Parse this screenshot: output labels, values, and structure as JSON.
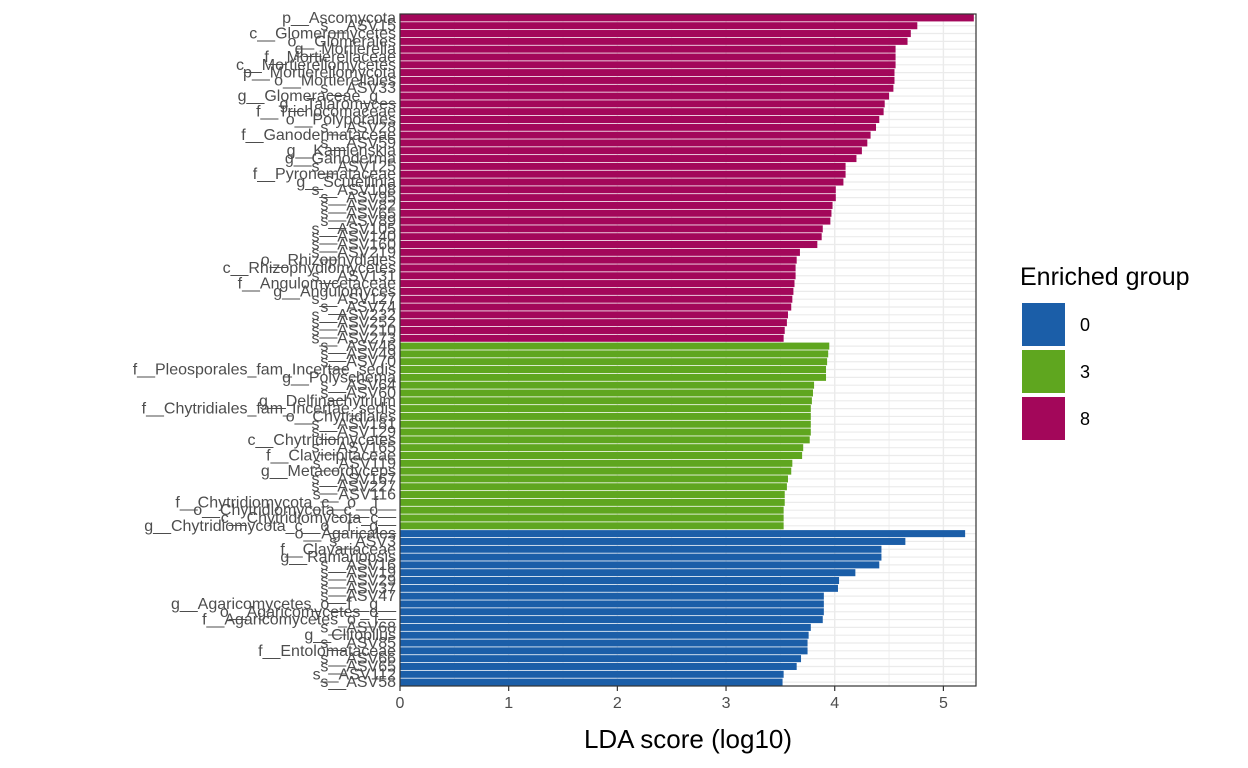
{
  "chart_data": {
    "type": "bar",
    "orientation": "horizontal",
    "xlabel": "LDA score (log10)",
    "ylabel": "",
    "xlim": [
      0,
      5.3
    ],
    "x_ticks": [
      "0",
      "1",
      "2",
      "3",
      "4",
      "5"
    ],
    "grid": true,
    "legend": {
      "title": "Enriched group",
      "placement": "right",
      "entries": [
        {
          "label": "0",
          "color": "#1B5EA8"
        },
        {
          "label": "3",
          "color": "#5FA61F"
        },
        {
          "label": "8",
          "color": "#A3075A"
        }
      ]
    },
    "bars": [
      {
        "label": "p__Ascomycota",
        "value": 5.28,
        "group": "8"
      },
      {
        "label": "s__ASV15",
        "value": 4.76,
        "group": "8"
      },
      {
        "label": "c__Glomeromycetes",
        "value": 4.7,
        "group": "8"
      },
      {
        "label": "o__Glomerales",
        "value": 4.67,
        "group": "8"
      },
      {
        "label": "g__Mortierella",
        "value": 4.56,
        "group": "8"
      },
      {
        "label": "f__Mortierellaceae",
        "value": 4.56,
        "group": "8"
      },
      {
        "label": "c__Mortierellomycetes",
        "value": 4.56,
        "group": "8"
      },
      {
        "label": "p__Mortierellomycota",
        "value": 4.55,
        "group": "8"
      },
      {
        "label": "o__Mortierellales",
        "value": 4.55,
        "group": "8"
      },
      {
        "label": "s__ASV33",
        "value": 4.54,
        "group": "8"
      },
      {
        "label": "g__Glomeraceae_g__",
        "value": 4.5,
        "group": "8"
      },
      {
        "label": "g__Talaromyces",
        "value": 4.46,
        "group": "8"
      },
      {
        "label": "f__Trichocomaceae",
        "value": 4.45,
        "group": "8"
      },
      {
        "label": "o__Polyporales",
        "value": 4.41,
        "group": "8"
      },
      {
        "label": "s__ASV28",
        "value": 4.38,
        "group": "8"
      },
      {
        "label": "f__Ganodermataceae",
        "value": 4.33,
        "group": "8"
      },
      {
        "label": "s__ASV59",
        "value": 4.3,
        "group": "8"
      },
      {
        "label": "g__Kamienskia",
        "value": 4.25,
        "group": "8"
      },
      {
        "label": "g__Ganoderma",
        "value": 4.2,
        "group": "8"
      },
      {
        "label": "s__ASV125",
        "value": 4.1,
        "group": "8"
      },
      {
        "label": "f__Pyronemataceae",
        "value": 4.1,
        "group": "8"
      },
      {
        "label": "g__Scutellinia",
        "value": 4.08,
        "group": "8"
      },
      {
        "label": "s__ASV108",
        "value": 4.01,
        "group": "8"
      },
      {
        "label": "s__ASV95",
        "value": 4.01,
        "group": "8"
      },
      {
        "label": "s__ASV82",
        "value": 3.98,
        "group": "8"
      },
      {
        "label": "s__ASV65",
        "value": 3.97,
        "group": "8"
      },
      {
        "label": "s__ASV89",
        "value": 3.96,
        "group": "8"
      },
      {
        "label": "s__ASV105",
        "value": 3.89,
        "group": "8"
      },
      {
        "label": "s__ASV140",
        "value": 3.88,
        "group": "8"
      },
      {
        "label": "s__ASV160",
        "value": 3.84,
        "group": "8"
      },
      {
        "label": "s__ASV219",
        "value": 3.68,
        "group": "8"
      },
      {
        "label": "o__Rhizophydiales",
        "value": 3.65,
        "group": "8"
      },
      {
        "label": "c__Rhizophydiomycetes",
        "value": 3.64,
        "group": "8"
      },
      {
        "label": "s__ASV131",
        "value": 3.64,
        "group": "8"
      },
      {
        "label": "f__Angulomycetaceae",
        "value": 3.63,
        "group": "8"
      },
      {
        "label": "g__Angulomyces",
        "value": 3.62,
        "group": "8"
      },
      {
        "label": "s__ASV127",
        "value": 3.61,
        "group": "8"
      },
      {
        "label": "s__ASV74",
        "value": 3.6,
        "group": "8"
      },
      {
        "label": "s__ASV232",
        "value": 3.57,
        "group": "8"
      },
      {
        "label": "s__ASV252",
        "value": 3.56,
        "group": "8"
      },
      {
        "label": "s__ASV210",
        "value": 3.54,
        "group": "8"
      },
      {
        "label": "s__ASV273",
        "value": 3.53,
        "group": "8"
      },
      {
        "label": "s__ASV46",
        "value": 3.95,
        "group": "3"
      },
      {
        "label": "s__ASV49",
        "value": 3.94,
        "group": "3"
      },
      {
        "label": "s__ASV70",
        "value": 3.93,
        "group": "3"
      },
      {
        "label": "f__Pleosporales_fam_Incertae_sedis",
        "value": 3.92,
        "group": "3"
      },
      {
        "label": "g__Polyschema",
        "value": 3.92,
        "group": "3"
      },
      {
        "label": "s__ASV64",
        "value": 3.81,
        "group": "3"
      },
      {
        "label": "s__ASV60",
        "value": 3.8,
        "group": "3"
      },
      {
        "label": "g__Delfinachytrium",
        "value": 3.79,
        "group": "3"
      },
      {
        "label": "f__Chytridiales_fam_Incertae_sedis",
        "value": 3.78,
        "group": "3"
      },
      {
        "label": "o__Chytridiales",
        "value": 3.78,
        "group": "3"
      },
      {
        "label": "s__ASV181",
        "value": 3.78,
        "group": "3"
      },
      {
        "label": "s__ASV129",
        "value": 3.78,
        "group": "3"
      },
      {
        "label": "c__Chytridiomycetes",
        "value": 3.77,
        "group": "3"
      },
      {
        "label": "s__ASV165",
        "value": 3.71,
        "group": "3"
      },
      {
        "label": "f__Clavicipitaceae",
        "value": 3.7,
        "group": "3"
      },
      {
        "label": "s__ASV119",
        "value": 3.61,
        "group": "3"
      },
      {
        "label": "g__Metacordyceps",
        "value": 3.6,
        "group": "3"
      },
      {
        "label": "s__ASV167",
        "value": 3.57,
        "group": "3"
      },
      {
        "label": "s__ASV227",
        "value": 3.56,
        "group": "3"
      },
      {
        "label": "s__ASV116",
        "value": 3.54,
        "group": "3"
      },
      {
        "label": "f__Chytridiomycota_c__o__f__",
        "value": 3.54,
        "group": "3"
      },
      {
        "label": "o__Chytridiomycota_c__o__",
        "value": 3.53,
        "group": "3"
      },
      {
        "label": "c__Chytridiomycota_c__",
        "value": 3.53,
        "group": "3"
      },
      {
        "label": "g__Chytridiomycota_c__o__f__g__",
        "value": 3.53,
        "group": "3"
      },
      {
        "label": "o__Agaricales",
        "value": 5.2,
        "group": "0"
      },
      {
        "label": "s__ASV3",
        "value": 4.65,
        "group": "0"
      },
      {
        "label": "f__Clavariaceae",
        "value": 4.43,
        "group": "0"
      },
      {
        "label": "g__Ramariopsis",
        "value": 4.43,
        "group": "0"
      },
      {
        "label": "s__ASV16",
        "value": 4.41,
        "group": "0"
      },
      {
        "label": "s__ASV19",
        "value": 4.19,
        "group": "0"
      },
      {
        "label": "s__ASV29",
        "value": 4.04,
        "group": "0"
      },
      {
        "label": "s__ASV37",
        "value": 4.03,
        "group": "0"
      },
      {
        "label": "s__ASV47",
        "value": 3.9,
        "group": "0"
      },
      {
        "label": "g__Agaricomycetes_o__f__g__",
        "value": 3.9,
        "group": "0"
      },
      {
        "label": "o__Agaricomycetes_o__",
        "value": 3.9,
        "group": "0"
      },
      {
        "label": "f__Agaricomycetes_o__f__",
        "value": 3.89,
        "group": "0"
      },
      {
        "label": "s__ASV68",
        "value": 3.78,
        "group": "0"
      },
      {
        "label": "g__Clitopilus",
        "value": 3.76,
        "group": "0"
      },
      {
        "label": "s__ASV85",
        "value": 3.75,
        "group": "0"
      },
      {
        "label": "f__Entolomataceae",
        "value": 3.75,
        "group": "0"
      },
      {
        "label": "s__ASV66",
        "value": 3.69,
        "group": "0"
      },
      {
        "label": "s__ASV65",
        "value": 3.65,
        "group": "0"
      },
      {
        "label": "s__ASV112",
        "value": 3.53,
        "group": "0"
      },
      {
        "label": "s__ASV58",
        "value": 3.52,
        "group": "0"
      }
    ]
  }
}
